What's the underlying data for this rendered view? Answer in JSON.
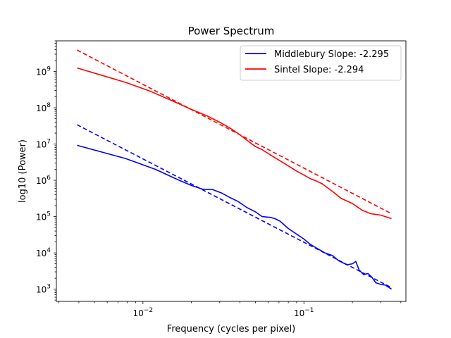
{
  "chart_data": {
    "type": "line",
    "title": "Power Spectrum",
    "xlabel": "Frequency (cycles per pixel)",
    "ylabel": "log10 (Power)",
    "xscale": "log",
    "yscale": "log",
    "xlim": [
      0.0029,
      0.43
    ],
    "ylim": [
      460,
      7000000000
    ],
    "grid": false,
    "legend_position": "top-right",
    "x_major_ticks": [
      {
        "value": 0.01,
        "base": "10",
        "exp": "−2"
      },
      {
        "value": 0.1,
        "base": "10",
        "exp": "−1"
      }
    ],
    "y_major_ticks": [
      {
        "value": 1000,
        "base": "10",
        "exp": "3"
      },
      {
        "value": 10000,
        "base": "10",
        "exp": "4"
      },
      {
        "value": 100000,
        "base": "10",
        "exp": "5"
      },
      {
        "value": 1000000,
        "base": "10",
        "exp": "6"
      },
      {
        "value": 10000000,
        "base": "10",
        "exp": "7"
      },
      {
        "value": 100000000,
        "base": "10",
        "exp": "8"
      },
      {
        "value": 1000000000,
        "base": "10",
        "exp": "9"
      }
    ],
    "series": [
      {
        "name": "Middlebury Slope: -2.295",
        "color": "#0000ff",
        "style": "solid",
        "in_legend": true,
        "x": [
          0.0039,
          0.0078,
          0.012,
          0.016,
          0.02,
          0.0235,
          0.027,
          0.031,
          0.035,
          0.039,
          0.044,
          0.05,
          0.055,
          0.062,
          0.066,
          0.071,
          0.08,
          0.09,
          0.1,
          0.11,
          0.12,
          0.135,
          0.15,
          0.165,
          0.185,
          0.2,
          0.21,
          0.22,
          0.235,
          0.25,
          0.265,
          0.28,
          0.3,
          0.32,
          0.35
        ],
        "y": [
          9200000,
          4000000,
          2000000,
          1100000,
          720000,
          570000,
          560000,
          440000,
          330000,
          260000,
          180000,
          135000,
          100000,
          95000,
          88000,
          75000,
          47000,
          33000,
          24000,
          17000,
          13500,
          10000,
          8500,
          6000,
          4700,
          5000,
          5800,
          3400,
          2500,
          2700,
          2100,
          1500,
          1350,
          1300,
          1000
        ]
      },
      {
        "name": "Middlebury fit",
        "color": "#0000ff",
        "style": "dashed",
        "in_legend": false,
        "x": [
          0.0039,
          0.35
        ],
        "y": [
          34000000,
          1100
        ]
      },
      {
        "name": "Sintel Slope: -2.294",
        "color": "#ff0000",
        "style": "solid",
        "in_legend": true,
        "x": [
          0.0039,
          0.0078,
          0.011,
          0.015,
          0.02,
          0.025,
          0.03,
          0.035,
          0.04,
          0.045,
          0.05,
          0.055,
          0.062,
          0.07,
          0.08,
          0.09,
          0.1,
          0.11,
          0.12,
          0.13,
          0.15,
          0.17,
          0.2,
          0.23,
          0.26,
          0.3,
          0.35
        ],
        "y": [
          1250000000,
          500000000,
          290000000,
          160000000,
          90000000,
          60000000,
          40000000,
          27000000,
          18000000,
          12000000,
          8500000,
          7000000,
          5000000,
          3600000,
          2500000,
          1800000,
          1400000,
          1100000,
          950000,
          800000,
          500000,
          320000,
          230000,
          150000,
          120000,
          110000,
          88000
        ]
      },
      {
        "name": "Sintel fit",
        "color": "#ff0000",
        "style": "dashed",
        "in_legend": false,
        "x": [
          0.0039,
          0.35
        ],
        "y": [
          3900000000,
          120000
        ]
      }
    ]
  }
}
